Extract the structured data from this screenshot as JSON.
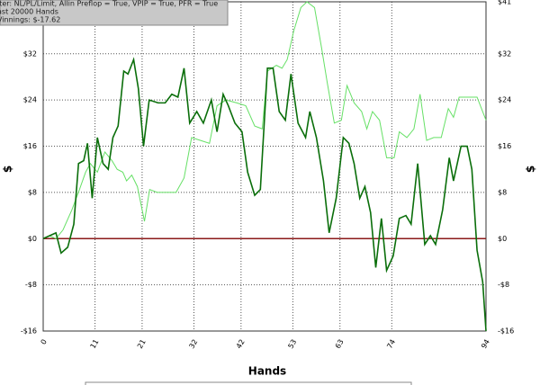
{
  "chart_data": {
    "type": "line",
    "x_label": "Hands",
    "y_label": "$",
    "xlim": [
      0,
      94
    ],
    "ylim": [
      -16,
      41
    ],
    "xticks": [
      0,
      11,
      21,
      32,
      42,
      53,
      63,
      74,
      94
    ],
    "yticks": [
      {
        "value": 41,
        "label": "$41"
      },
      {
        "value": 32,
        "label": "$32"
      },
      {
        "value": 24,
        "label": "$24"
      },
      {
        "value": 16,
        "label": "$16"
      },
      {
        "value": 8,
        "label": "$8"
      },
      {
        "value": 0,
        "label": "$0"
      },
      {
        "value": -8,
        "label": "-$8"
      },
      {
        "value": -16,
        "label": "-$16"
      }
    ],
    "grid": true,
    "zero_line_color": "#8b1a1a",
    "series": [
      {
        "color": "#66e066",
        "x": [
          0,
          1.3,
          2.7,
          4.2,
          6.1,
          7.7,
          9.0,
          10.0,
          11.5,
          13.1,
          14.6,
          15.7,
          16.9,
          17.7,
          18.8,
          20.0,
          21.5,
          22.6,
          24.2,
          26.3,
          28.2,
          29.9,
          31.5,
          33.4,
          35.3,
          36.9,
          38.8,
          41.1,
          43.0,
          44.9,
          46.5,
          47.6,
          49.5,
          50.7,
          51.8,
          53.2,
          54.7,
          56.0,
          57.6,
          59.1,
          60.3,
          61.8,
          63.3,
          64.5,
          66.0,
          67.6,
          68.7,
          69.9,
          71.4,
          72.9,
          74.5,
          75.6,
          77.2,
          78.7,
          80.0,
          81.4,
          82.9,
          84.5,
          86.0,
          87.1,
          88.3,
          90.2,
          92.1,
          94
        ],
        "values": [
          0,
          0.5,
          0,
          1.5,
          5,
          8.5,
          11.5,
          13,
          11.5,
          15,
          13.5,
          12,
          11.5,
          10,
          11,
          9,
          3,
          8.5,
          8,
          8,
          8,
          10.5,
          17.5,
          17,
          16.5,
          23,
          24,
          23.5,
          23,
          19.5,
          19,
          29,
          30,
          29.5,
          31,
          36,
          40,
          41,
          40,
          33,
          27,
          20,
          20.5,
          26.5,
          23.5,
          22,
          19,
          22,
          20.5,
          14,
          14,
          18.5,
          17.5,
          19,
          25,
          17,
          17.5,
          17.5,
          22.5,
          21,
          24.5,
          24.5,
          24.5,
          20.5
        ]
      },
      {
        "color": "#0a6e0a",
        "x": [
          0,
          2.7,
          3.8,
          5.2,
          6.5,
          7.5,
          8.6,
          9.4,
          10.4,
          11.5,
          12.7,
          13.8,
          14.8,
          15.9,
          17.1,
          18.0,
          19.2,
          20.2,
          21.3,
          22.5,
          24.4,
          25.9,
          27.3,
          28.6,
          29.9,
          31.1,
          32.6,
          34.0,
          35.7,
          36.9,
          38.2,
          39.3,
          40.7,
          42.2,
          43.4,
          44.9,
          46.1,
          47.6,
          48.8,
          50.1,
          51.4,
          52.6,
          54.1,
          55.7,
          56.6,
          58.0,
          59.5,
          60.7,
          62.2,
          63.7,
          64.9,
          66.0,
          67.2,
          68.3,
          69.5,
          70.6,
          71.8,
          72.9,
          74.3,
          75.6,
          77.0,
          78.1,
          79.5,
          81.0,
          82.2,
          83.3,
          84.8,
          86.2,
          87.1,
          88.7,
          90.0,
          91.0,
          92.1,
          93.3,
          94
        ],
        "values": [
          0,
          1,
          -2.5,
          -1.5,
          2.5,
          13,
          13.5,
          16.5,
          7,
          17.5,
          13,
          12,
          17.5,
          19.5,
          29,
          28.5,
          31,
          26,
          16,
          24,
          23.5,
          23.5,
          25,
          24.5,
          29.5,
          20,
          22,
          20,
          24,
          18.5,
          25,
          23,
          20,
          18.5,
          11.5,
          7.5,
          8.5,
          29.5,
          29.5,
          22,
          20.5,
          28.5,
          20,
          17.5,
          22,
          17.5,
          10,
          1,
          7,
          17.5,
          16.5,
          13,
          7,
          9,
          4.5,
          -5,
          3.5,
          -5.5,
          -3,
          3.5,
          4,
          2.5,
          13,
          -1,
          0.5,
          -1,
          5,
          14,
          10,
          16,
          16,
          12,
          -2,
          -7.5,
          -16
        ]
      }
    ]
  },
  "overlay": {
    "lines": [
      "iter: NL/PL/Limit, Allin Preflop = True, VPIP = True, PFR = True",
      "ast  20000 Hands",
      "Vinnings: $-17.62"
    ]
  }
}
